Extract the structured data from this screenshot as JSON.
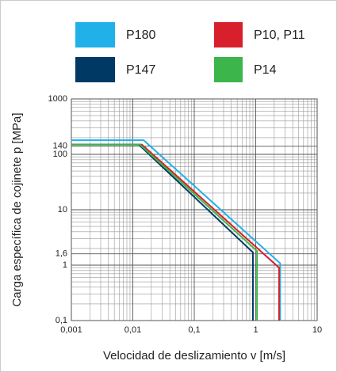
{
  "chart_data": {
    "type": "line",
    "x_label": "Velocidad de deslizamiento v [m/s]",
    "y_label": "Carga específica de cojinete p [MPa]",
    "log_x": true,
    "log_y": true,
    "grid": true,
    "xlim": [
      0.001,
      10
    ],
    "xticks": [
      {
        "value": 0.001,
        "label": "0,001"
      },
      {
        "value": 0.01,
        "label": "0,01"
      },
      {
        "value": 0.1,
        "label": "0,1"
      },
      1,
      10
    ],
    "ylim": [
      0.1,
      1000
    ],
    "yticks": [
      {
        "value": 0.1,
        "label": "0,1"
      },
      1,
      {
        "value": 1.6,
        "label": "1,6"
      },
      10,
      100,
      140,
      1000
    ],
    "series": [
      {
        "name": "P180",
        "color": "#1fb1e8",
        "x": [
          0.001,
          0.015,
          2.5,
          2.5
        ],
        "values": [
          180,
          180,
          1.08,
          0.1
        ]
      },
      {
        "name": "P10, P11",
        "color": "#d7202b",
        "x": [
          0.001,
          0.014,
          2.4,
          2.4
        ],
        "values": [
          150,
          150,
          0.9,
          0.1
        ]
      },
      {
        "name": "P147",
        "color": "#003a64",
        "x": [
          0.001,
          0.0125,
          0.9,
          0.9
        ],
        "values": [
          150,
          150,
          1.7,
          0.1
        ]
      },
      {
        "name": "P14",
        "color": "#3cb54a",
        "x": [
          0.001,
          0.013,
          1.05,
          1.05
        ],
        "values": [
          150,
          150,
          1.8,
          0.1
        ]
      }
    ]
  }
}
